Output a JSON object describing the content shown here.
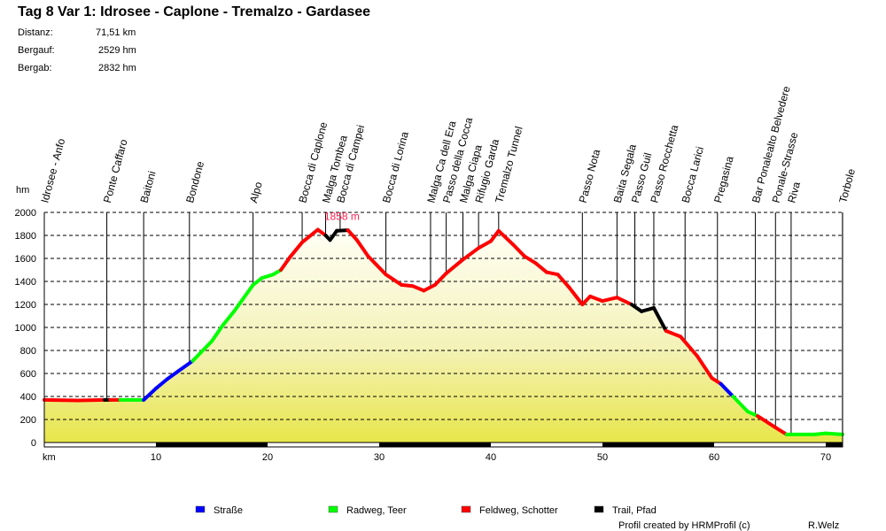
{
  "title": "Tag 8 Var 1: Idrosee - Caplone - Tremalzo - Gardasee",
  "stats": [
    {
      "label": "Distanz:",
      "value": "71,51 km"
    },
    {
      "label": "Bergauf:",
      "value": "2529 hm"
    },
    {
      "label": "Bergab:",
      "value": "2832 hm"
    }
  ],
  "footer": {
    "credit": "Profil created by HRMProfil (c)",
    "author": "R.Welz"
  },
  "chart_data": {
    "type": "area",
    "title": "Tag 8 Var 1: Idrosee - Caplone - Tremalzo - Gardasee",
    "xlabel": "km",
    "ylabel": "hm",
    "xlim": [
      0,
      71.51
    ],
    "ylim": [
      0,
      2000
    ],
    "xticks": [
      10,
      20,
      30,
      40,
      50,
      60,
      70
    ],
    "yticks": [
      0,
      200,
      400,
      600,
      800,
      1000,
      1200,
      1400,
      1600,
      1800,
      2000
    ],
    "grid": true,
    "max_label": "1858 m",
    "max_point": {
      "km": 26.5,
      "elev": 1858
    },
    "surfaces": [
      {
        "key": "S",
        "name": "Straße",
        "color": "#0000ff"
      },
      {
        "key": "R",
        "name": "Radweg, Teer",
        "color": "#00ff00"
      },
      {
        "key": "F",
        "name": "Feldweg, Schotter",
        "color": "#ff0000"
      },
      {
        "key": "T",
        "name": "Trail, Pfad",
        "color": "#000000"
      }
    ],
    "profile": [
      [
        0,
        370,
        "F"
      ],
      [
        3,
        365,
        "F"
      ],
      [
        5.4,
        370,
        "T"
      ],
      [
        5.9,
        370,
        "F"
      ],
      [
        6.8,
        370,
        "R"
      ],
      [
        8.9,
        370,
        "S"
      ],
      [
        10,
        470,
        "S"
      ],
      [
        11,
        550,
        "S"
      ],
      [
        12,
        620,
        "S"
      ],
      [
        13.3,
        710,
        "R"
      ],
      [
        15,
        880,
        "R"
      ],
      [
        16,
        1020,
        "R"
      ],
      [
        17,
        1140,
        "R"
      ],
      [
        18.7,
        1370,
        "R"
      ],
      [
        19.5,
        1430,
        "R"
      ],
      [
        20.5,
        1460,
        "R"
      ],
      [
        21.2,
        1500,
        "F"
      ],
      [
        22,
        1610,
        "F"
      ],
      [
        23.1,
        1740,
        "F"
      ],
      [
        24.5,
        1850,
        "F"
      ],
      [
        25.2,
        1800,
        "T"
      ],
      [
        25.6,
        1760,
        "T"
      ],
      [
        26.2,
        1840,
        "T"
      ],
      [
        27.2,
        1845,
        "F"
      ],
      [
        28,
        1760,
        "F"
      ],
      [
        29,
        1620,
        "F"
      ],
      [
        30.6,
        1460,
        "F"
      ],
      [
        32,
        1370,
        "F"
      ],
      [
        33,
        1360,
        "F"
      ],
      [
        34,
        1320,
        "F"
      ],
      [
        35,
        1370,
        "F"
      ],
      [
        36,
        1470,
        "F"
      ],
      [
        37.5,
        1590,
        "F"
      ],
      [
        38.9,
        1690,
        "F"
      ],
      [
        40,
        1750,
        "F"
      ],
      [
        40.7,
        1840,
        "F"
      ],
      [
        42,
        1720,
        "F"
      ],
      [
        43,
        1620,
        "F"
      ],
      [
        44,
        1560,
        "F"
      ],
      [
        45,
        1480,
        "F"
      ],
      [
        46,
        1460,
        "F"
      ],
      [
        47,
        1350,
        "F"
      ],
      [
        48.2,
        1200,
        "F"
      ],
      [
        48.9,
        1270,
        "F"
      ],
      [
        50,
        1230,
        "F"
      ],
      [
        51.3,
        1260,
        "F"
      ],
      [
        52.6,
        1200,
        "T"
      ],
      [
        53.5,
        1140,
        "T"
      ],
      [
        54.6,
        1170,
        "T"
      ],
      [
        55.7,
        970,
        "F"
      ],
      [
        57,
        920,
        "F"
      ],
      [
        58.5,
        750,
        "F"
      ],
      [
        59.8,
        560,
        "F"
      ],
      [
        60.6,
        510,
        "S"
      ],
      [
        61.7,
        400,
        "R"
      ],
      [
        63,
        270,
        "R"
      ],
      [
        63.9,
        230,
        "F"
      ],
      [
        65.5,
        130,
        "F"
      ],
      [
        66.5,
        70,
        "R"
      ],
      [
        69,
        70,
        "R"
      ],
      [
        70,
        80,
        "R"
      ],
      [
        71.51,
        70,
        "R"
      ]
    ],
    "waypoints": [
      {
        "name": "Idrosee - Anfo",
        "km": 0
      },
      {
        "name": "Ponte Caffaro",
        "km": 5.6
      },
      {
        "name": "Baitoni",
        "km": 8.9
      },
      {
        "name": "Bondone",
        "km": 13.0
      },
      {
        "name": "Alpo",
        "km": 18.7
      },
      {
        "name": "Bocca di Caplone",
        "km": 23.1
      },
      {
        "name": "Malga Tombea",
        "km": 25.2
      },
      {
        "name": "Bocca di Campei",
        "km": 26.5
      },
      {
        "name": "Bocca di Lorina",
        "km": 30.6
      },
      {
        "name": "Malga Ca dell Era",
        "km": 34.6
      },
      {
        "name": "Passo della Cocca",
        "km": 36.0
      },
      {
        "name": "Malga Ciapa",
        "km": 37.5
      },
      {
        "name": "Rifugio Garda",
        "km": 38.9
      },
      {
        "name": "Tremalzo Tunnel",
        "km": 40.7
      },
      {
        "name": "Passo Nota",
        "km": 48.2
      },
      {
        "name": "Baita Segala",
        "km": 51.3
      },
      {
        "name": "Passo Guil",
        "km": 52.9
      },
      {
        "name": "Passo Rocchetta",
        "km": 54.6
      },
      {
        "name": "Bocca Larici",
        "km": 57.4
      },
      {
        "name": "Pregasina",
        "km": 60.3
      },
      {
        "name": "Bar Ponalealto Belvedere",
        "km": 63.7
      },
      {
        "name": "Ponale-Strasse",
        "km": 65.5
      },
      {
        "name": "Riva",
        "km": 66.9
      },
      {
        "name": "Torbole",
        "km": 71.5
      }
    ]
  }
}
